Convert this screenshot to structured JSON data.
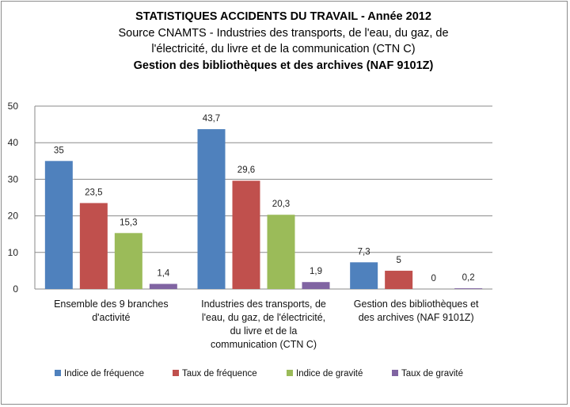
{
  "chart_data": {
    "type": "bar",
    "title_lines": [
      "STATISTIQUES ACCIDENTS DU TRAVAIL - Année 2012",
      "Source CNAMTS -   Industries des transports, de l'eau, du  gaz, de",
      "l'électricité, du livre et de la communication (CTN  C)",
      "Gestion des bibliothèques et des archives (NAF 9101Z)"
    ],
    "categories": [
      [
        "Ensemble des 9 branches",
        "d'activité"
      ],
      [
        "Industries des transports, de",
        "l'eau, du gaz, de l'électricité,",
        "du livre et de la",
        "communication (CTN C)"
      ],
      [
        "Gestion des bibliothèques  et",
        "des archives (NAF 9101Z)"
      ]
    ],
    "series": [
      {
        "name": "Indice de fréquence",
        "color": "#4F81BD",
        "values": [
          35,
          43.7,
          7.3
        ],
        "labels": [
          "35",
          "43,7",
          "7,3"
        ]
      },
      {
        "name": "Taux de fréquence",
        "color": "#C0504D",
        "values": [
          23.5,
          29.6,
          5
        ],
        "labels": [
          "23,5",
          "29,6",
          "5"
        ]
      },
      {
        "name": "Indice de gravité",
        "color": "#9BBB59",
        "values": [
          15.3,
          20.3,
          0
        ],
        "labels": [
          "15,3",
          "20,3",
          "0"
        ]
      },
      {
        "name": "Taux de gravité",
        "color": "#8064A2",
        "values": [
          1.4,
          1.9,
          0.2
        ],
        "labels": [
          "1,4",
          "1,9",
          "0,2"
        ]
      }
    ],
    "ylim": [
      0,
      50
    ],
    "yticks": [
      0,
      10,
      20,
      30,
      40,
      50
    ],
    "grid": true,
    "legend_position": "bottom"
  }
}
